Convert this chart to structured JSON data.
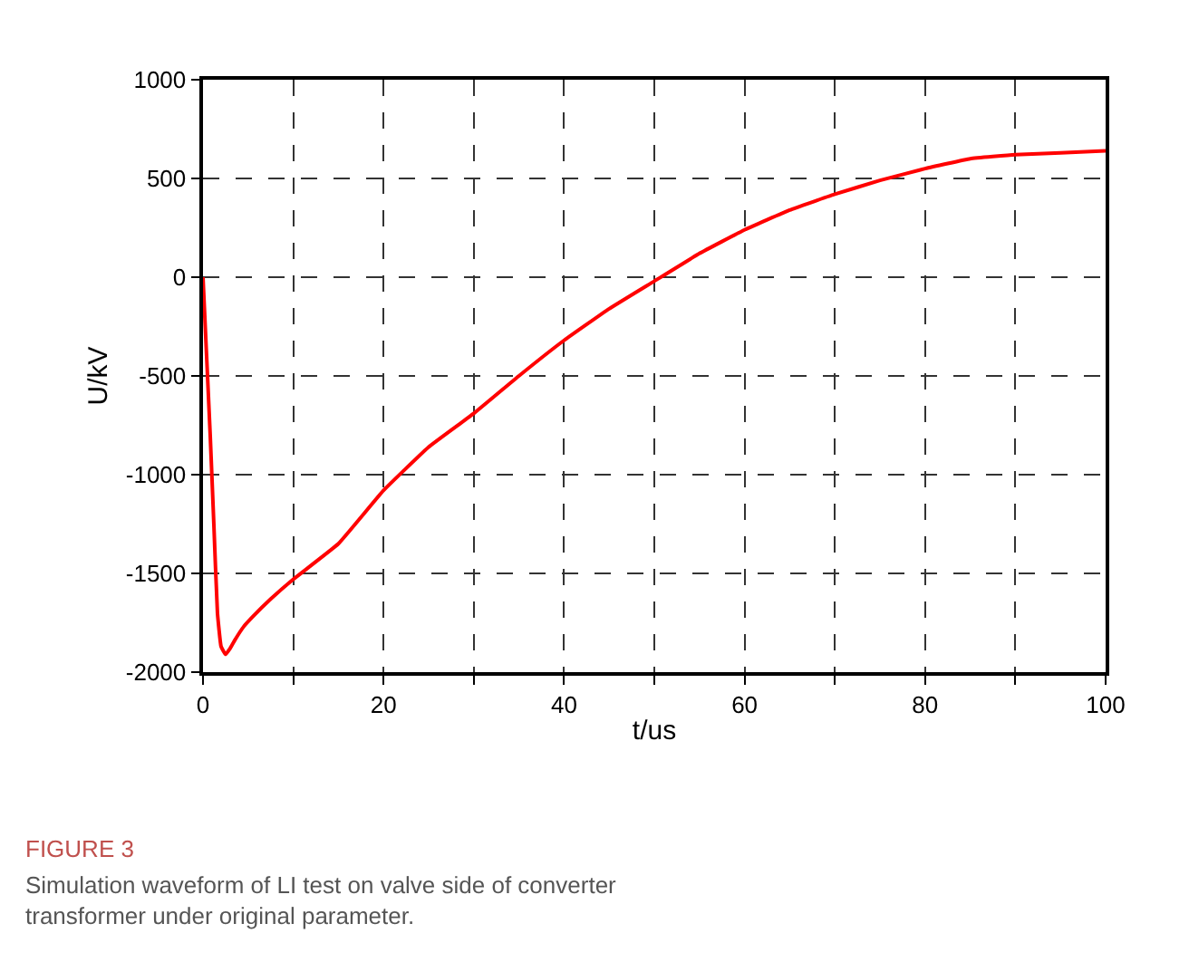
{
  "chart_data": {
    "type": "line",
    "xlabel": "t/us",
    "ylabel": "U/kV",
    "annotations": [
      "FIGURE 3",
      "Simulation waveform of LI test on valve side of converter transformer under original parameter."
    ],
    "x": [
      0,
      0.4,
      0.8,
      1.2,
      1.6,
      2,
      2.5,
      3,
      3.5,
      4.5,
      5.5,
      7.5,
      10,
      15,
      20,
      25,
      30,
      35,
      40,
      45,
      50,
      55,
      60,
      65,
      70,
      75,
      80,
      85,
      90,
      95,
      100
    ],
    "series": [
      {
        "color": "#ff0000",
        "values": [
          0,
          -400,
          -800,
          -1250,
          -1700,
          -1870,
          -1910,
          -1880,
          -1840,
          -1770,
          -1720,
          -1630,
          -1530,
          -1350,
          -1080,
          -860,
          -690,
          -500,
          -320,
          -160,
          -20,
          120,
          240,
          340,
          420,
          490,
          550,
          600,
          620,
          630,
          640
        ]
      }
    ],
    "xlim": [
      0,
      100
    ],
    "xticks": [
      0,
      {
        "value": 10,
        "label": null
      },
      20,
      {
        "value": 30,
        "label": null
      },
      40,
      {
        "value": 50,
        "label": null
      },
      60,
      {
        "value": 70,
        "label": null
      },
      80,
      {
        "value": 90,
        "label": null
      },
      100
    ],
    "ylim": [
      -2000,
      1000
    ],
    "yticks": [
      -2000,
      -1500,
      -1000,
      -500,
      0,
      500,
      1000
    ],
    "grid": true,
    "marker": "none",
    "line_style": "solid"
  }
}
